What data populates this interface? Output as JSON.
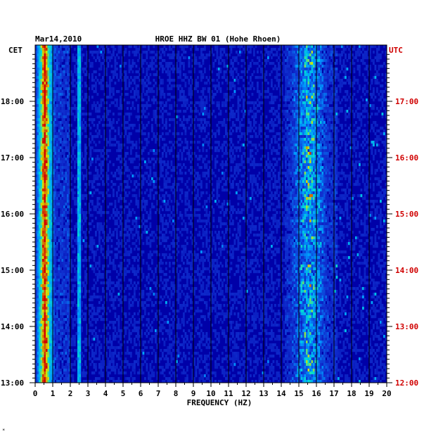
{
  "chart_data": {
    "type": "heatmap",
    "date": "Mar14,2010",
    "title": "HROE HHZ BW 01 (Hohe Rhoen)",
    "xlabel": "FREQUENCY (HZ)",
    "left_zone_label": "CET",
    "right_zone_label": "UTC",
    "xlim": [
      0,
      20
    ],
    "x_ticks": [
      "0",
      "1",
      "2",
      "3",
      "4",
      "5",
      "6",
      "7",
      "8",
      "9",
      "10",
      "11",
      "12",
      "13",
      "14",
      "15",
      "16",
      "17",
      "18",
      "19",
      "20"
    ],
    "cet_ticks": [
      "18:00",
      "17:00",
      "16:00",
      "15:00",
      "14:00",
      "13:00"
    ],
    "utc_ticks": [
      "17:00",
      "16:00",
      "15:00",
      "14:00",
      "13:00",
      "12:00"
    ],
    "y_hours_cet_range": [
      13.0,
      18.9
    ],
    "colors": {
      "background": "#0000a8",
      "low": "#1030d0",
      "mid": "#00b0ff",
      "high": "#e0e000",
      "peak": "#d00000",
      "utc_text": "#d00000"
    },
    "energy_bands": [
      {
        "freq_from": 0.2,
        "freq_to": 1.0,
        "level": "peak"
      },
      {
        "freq_from": 2.4,
        "freq_to": 2.6,
        "level": "low"
      },
      {
        "freq_from": 14.8,
        "freq_to": 16.6,
        "level": "high"
      }
    ]
  }
}
